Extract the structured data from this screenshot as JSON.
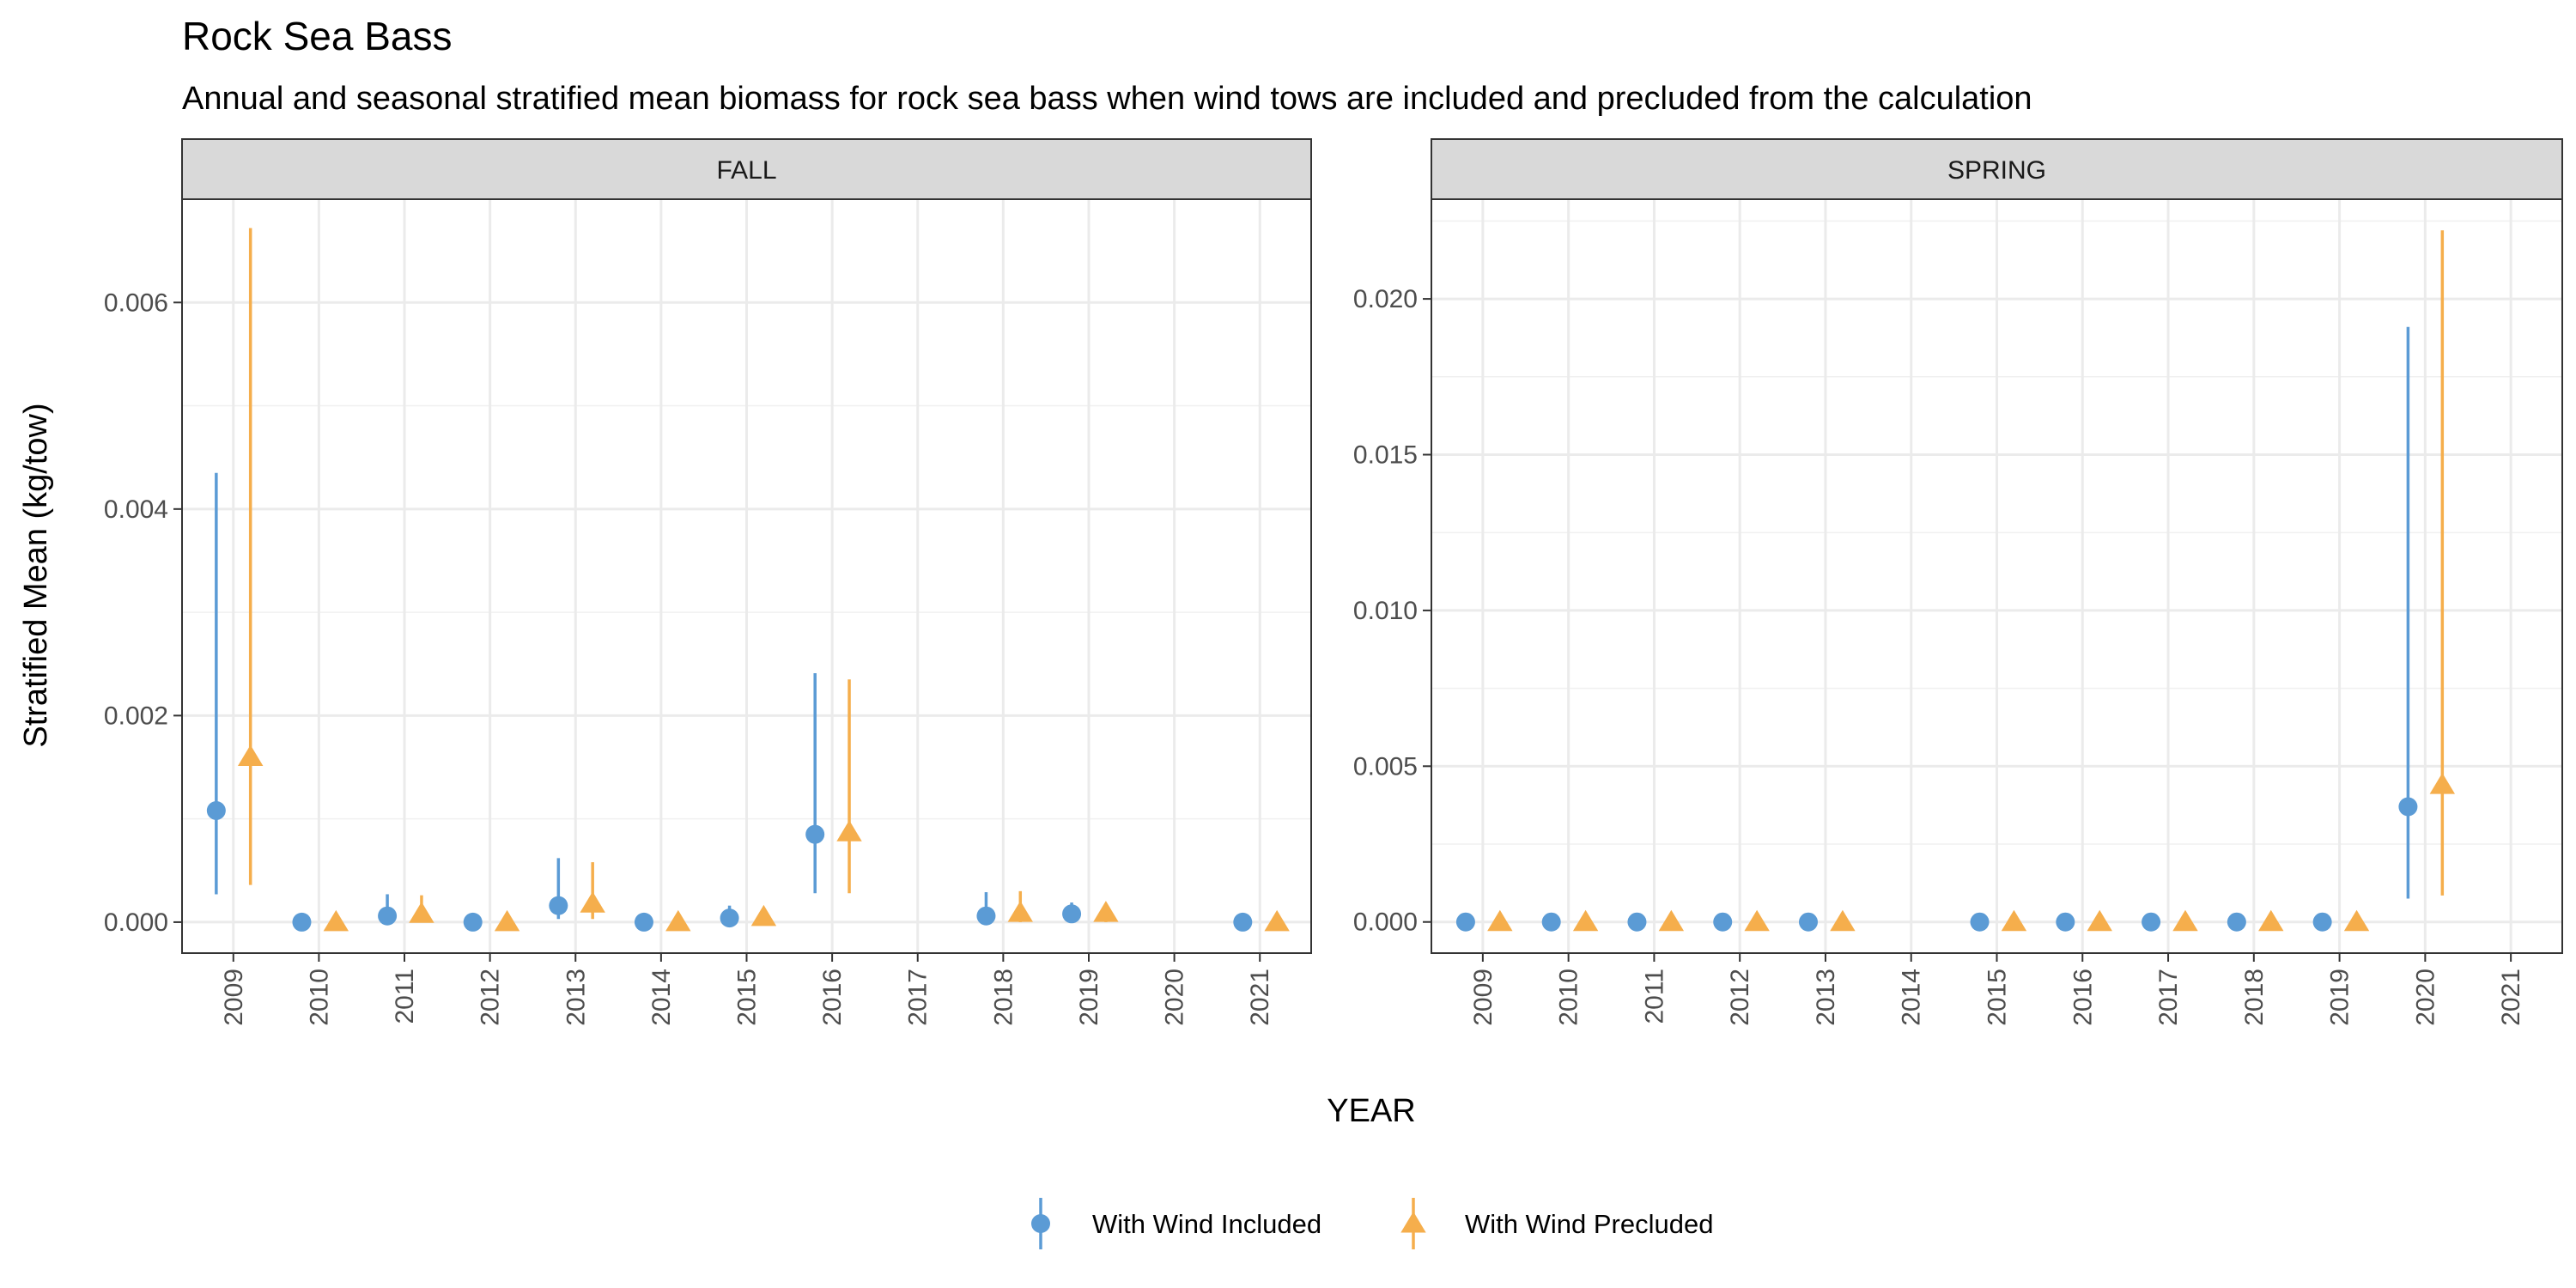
{
  "title": "Rock Sea Bass",
  "subtitle": "Annual and seasonal stratified mean biomass for rock sea bass when wind tows are included and precluded from the calculation",
  "colors": {
    "included": "#5b9bd5",
    "precluded": "#f5ae4c"
  },
  "chart_data": {
    "type": "scatter",
    "xlabel": "YEAR",
    "ylabel": "Stratified Mean (kg/tow)",
    "legend_position": "bottom",
    "grid": true,
    "series_names": [
      "With Wind Included",
      "With Wind Precluded"
    ],
    "x_categories": [
      "2009",
      "2010",
      "2011",
      "2012",
      "2013",
      "2014",
      "2015",
      "2016",
      "2017",
      "2018",
      "2019",
      "2020",
      "2021"
    ],
    "panels": [
      {
        "strip": "FALL",
        "ylim": [
          -0.0003,
          0.007
        ],
        "yticks": [
          0,
          0.002,
          0.004,
          0.006
        ],
        "ytick_labels": [
          "0.000",
          "0.002",
          "0.004",
          "0.006"
        ],
        "included": [
          {
            "year": "2009",
            "mean": 0.00108,
            "lower": 0.00027,
            "upper": 0.00435
          },
          {
            "year": "2010",
            "mean": 0.0,
            "lower": 0.0,
            "upper": 0.0
          },
          {
            "year": "2011",
            "mean": 6e-05,
            "lower": 0.0,
            "upper": 0.00027
          },
          {
            "year": "2012",
            "mean": 0.0,
            "lower": 0.0,
            "upper": 0.0
          },
          {
            "year": "2013",
            "mean": 0.00016,
            "lower": 3e-05,
            "upper": 0.00062
          },
          {
            "year": "2014",
            "mean": 0.0,
            "lower": 0.0,
            "upper": 0.0
          },
          {
            "year": "2015",
            "mean": 4e-05,
            "lower": 0.0,
            "upper": 0.00016
          },
          {
            "year": "2016",
            "mean": 0.00085,
            "lower": 0.00028,
            "upper": 0.00241
          },
          {
            "year": "2018",
            "mean": 6e-05,
            "lower": 0.0,
            "upper": 0.00029
          },
          {
            "year": "2019",
            "mean": 8e-05,
            "lower": 2e-05,
            "upper": 0.00019
          },
          {
            "year": "2021",
            "mean": 0.0,
            "lower": 0.0,
            "upper": 0.0
          }
        ],
        "precluded": [
          {
            "year": "2009",
            "mean": 0.0016,
            "lower": 0.00036,
            "upper": 0.00672
          },
          {
            "year": "2010",
            "mean": 0.0,
            "lower": 0.0,
            "upper": 0.0
          },
          {
            "year": "2011",
            "mean": 8e-05,
            "lower": 0.0,
            "upper": 0.00026
          },
          {
            "year": "2012",
            "mean": 0.0,
            "lower": 0.0,
            "upper": 0.0
          },
          {
            "year": "2013",
            "mean": 0.00018,
            "lower": 3e-05,
            "upper": 0.00058
          },
          {
            "year": "2014",
            "mean": 0.0,
            "lower": 0.0,
            "upper": 0.0
          },
          {
            "year": "2015",
            "mean": 5e-05,
            "lower": 0.0,
            "upper": 0.00012
          },
          {
            "year": "2016",
            "mean": 0.00087,
            "lower": 0.00028,
            "upper": 0.00235
          },
          {
            "year": "2018",
            "mean": 9e-05,
            "lower": 0.0,
            "upper": 0.0003
          },
          {
            "year": "2019",
            "mean": 9e-05,
            "lower": 0.0,
            "upper": 0.00018
          },
          {
            "year": "2021",
            "mean": 0.0,
            "lower": 0.0,
            "upper": 0.0
          }
        ]
      },
      {
        "strip": "SPRING",
        "ylim": [
          -0.001,
          0.0232
        ],
        "yticks": [
          0,
          0.005,
          0.01,
          0.015,
          0.02
        ],
        "ytick_labels": [
          "0.000",
          "0.005",
          "0.010",
          "0.015",
          "0.020"
        ],
        "included": [
          {
            "year": "2009",
            "mean": 0.0,
            "lower": 0.0,
            "upper": 0.0
          },
          {
            "year": "2010",
            "mean": 0.0,
            "lower": 0.0,
            "upper": 0.0
          },
          {
            "year": "2011",
            "mean": 0.0,
            "lower": 0.0,
            "upper": 0.0
          },
          {
            "year": "2012",
            "mean": 0.0,
            "lower": 0.0,
            "upper": 0.0
          },
          {
            "year": "2013",
            "mean": 0.0,
            "lower": 0.0,
            "upper": 0.0
          },
          {
            "year": "2015",
            "mean": 0.0,
            "lower": 0.0,
            "upper": 0.0
          },
          {
            "year": "2016",
            "mean": 0.0,
            "lower": 0.0,
            "upper": 0.0
          },
          {
            "year": "2017",
            "mean": 0.0,
            "lower": 0.0,
            "upper": 0.0
          },
          {
            "year": "2018",
            "mean": 0.0,
            "lower": 0.0,
            "upper": 0.0
          },
          {
            "year": "2019",
            "mean": 0.0,
            "lower": 0.0,
            "upper": 0.0
          },
          {
            "year": "2020",
            "mean": 0.0037,
            "lower": 0.00075,
            "upper": 0.0191
          }
        ],
        "precluded": [
          {
            "year": "2009",
            "mean": 0.0,
            "lower": 0.0,
            "upper": 0.0
          },
          {
            "year": "2010",
            "mean": 0.0,
            "lower": 0.0,
            "upper": 0.0
          },
          {
            "year": "2011",
            "mean": 0.0,
            "lower": 0.0,
            "upper": 0.0
          },
          {
            "year": "2012",
            "mean": 0.0,
            "lower": 0.0,
            "upper": 0.0
          },
          {
            "year": "2013",
            "mean": 0.0,
            "lower": 0.0,
            "upper": 0.0
          },
          {
            "year": "2015",
            "mean": 0.0,
            "lower": 0.0,
            "upper": 0.0
          },
          {
            "year": "2016",
            "mean": 0.0,
            "lower": 0.0,
            "upper": 0.0
          },
          {
            "year": "2017",
            "mean": 0.0,
            "lower": 0.0,
            "upper": 0.0
          },
          {
            "year": "2018",
            "mean": 0.0,
            "lower": 0.0,
            "upper": 0.0
          },
          {
            "year": "2019",
            "mean": 0.0,
            "lower": 0.0,
            "upper": 0.0
          },
          {
            "year": "2020",
            "mean": 0.0044,
            "lower": 0.00085,
            "upper": 0.0222
          }
        ]
      }
    ]
  }
}
